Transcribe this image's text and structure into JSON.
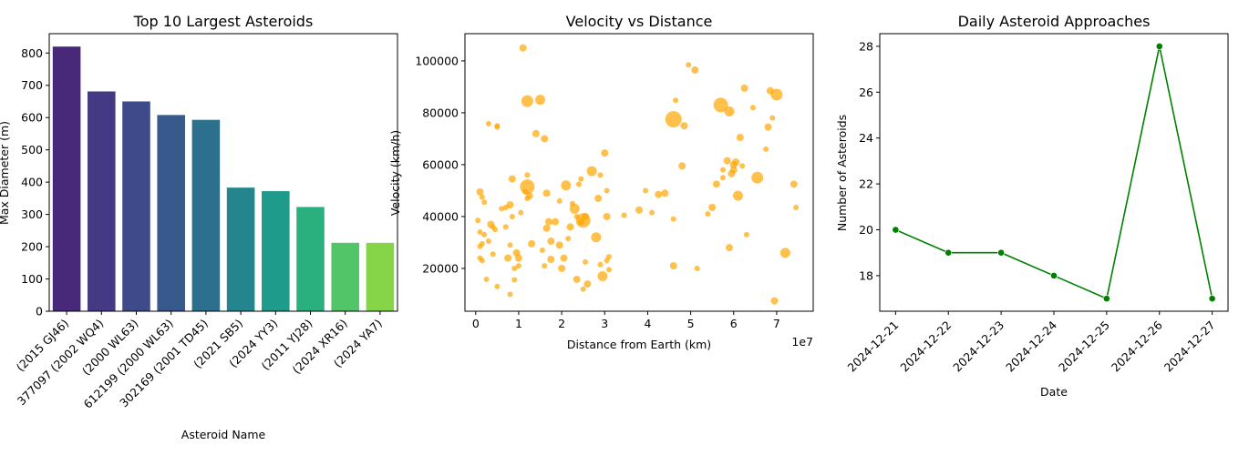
{
  "chart_data": [
    {
      "type": "bar",
      "title": "Top 10 Largest Asteroids",
      "xlabel": "Asteroid Name",
      "ylabel": "Max Diameter (m)",
      "ylim": [
        0,
        860
      ],
      "yticks": [
        0,
        100,
        200,
        300,
        400,
        500,
        600,
        700,
        800
      ],
      "categories": [
        "(2015 GJ46)",
        "377097 (2002 WQ4)",
        "(2000 WL63)",
        "612199 (2000 WL63)",
        "302169 (2001 TD45)",
        "(2021 SB5)",
        "(2024 YY3)",
        "(2011 YJ28)",
        "(2024 XR16)",
        "(2024 YA7)"
      ],
      "values": [
        820,
        681,
        650,
        608,
        593,
        383,
        372,
        323,
        212,
        212
      ],
      "colors": [
        "#482878",
        "#443983",
        "#3e4a89",
        "#38598c",
        "#2d708e",
        "#25858e",
        "#1e9b8a",
        "#2ab07f",
        "#52c569",
        "#86d549"
      ]
    },
    {
      "type": "scatter",
      "title": "Velocity vs Distance",
      "xlabel": "Distance from Earth (km)",
      "ylabel": "Velocity (km/h)",
      "x_multiplier_label": "1e7",
      "xlim": [
        -0.25,
        7.85
      ],
      "ylim": [
        3500,
        110500
      ],
      "xticks": [
        0,
        1,
        2,
        3,
        4,
        5,
        6,
        7
      ],
      "yticks": [
        20000,
        40000,
        60000,
        80000,
        100000
      ],
      "color": "#ffa500",
      "points": [
        [
          0.05,
          38500,
          1
        ],
        [
          0.1,
          49500,
          2
        ],
        [
          0.15,
          47500,
          1
        ],
        [
          0.2,
          45500,
          1
        ],
        [
          0.1,
          34000,
          1
        ],
        [
          0.15,
          29500,
          1
        ],
        [
          0.2,
          33000,
          1
        ],
        [
          0.1,
          28500,
          1
        ],
        [
          0.1,
          24000,
          1
        ],
        [
          0.15,
          23000,
          1
        ],
        [
          0.25,
          15800,
          1
        ],
        [
          0.3,
          30500,
          1
        ],
        [
          0.35,
          37000,
          2
        ],
        [
          0.4,
          36000,
          1
        ],
        [
          0.4,
          25500,
          1
        ],
        [
          0.3,
          75800,
          1
        ],
        [
          0.5,
          75000,
          1
        ],
        [
          0.5,
          74500,
          1
        ],
        [
          0.45,
          35000,
          1
        ],
        [
          0.6,
          43000,
          1
        ],
        [
          0.7,
          43500,
          1
        ],
        [
          0.7,
          36000,
          1
        ],
        [
          0.75,
          24000,
          2
        ],
        [
          0.8,
          29000,
          1
        ],
        [
          0.85,
          40000,
          1
        ],
        [
          0.85,
          54500,
          2
        ],
        [
          0.8,
          44500,
          2
        ],
        [
          0.9,
          20000,
          1
        ],
        [
          0.9,
          15600,
          1
        ],
        [
          0.8,
          10000,
          1
        ],
        [
          0.95,
          26000,
          2
        ],
        [
          1.0,
          21000,
          1
        ],
        [
          1.0,
          24000,
          2
        ],
        [
          0.5,
          13000,
          1
        ],
        [
          1.05,
          41500,
          1
        ],
        [
          1.15,
          49500,
          1
        ],
        [
          1.2,
          47000,
          1
        ],
        [
          1.25,
          48000,
          2
        ],
        [
          1.2,
          56000,
          1
        ],
        [
          1.2,
          51500,
          5
        ],
        [
          1.3,
          29500,
          2
        ],
        [
          1.1,
          105000,
          2
        ],
        [
          1.2,
          84500,
          4
        ],
        [
          1.4,
          72000,
          2
        ],
        [
          1.5,
          85000,
          3
        ],
        [
          1.55,
          27000,
          1
        ],
        [
          1.6,
          70000,
          2
        ],
        [
          1.6,
          21000,
          1
        ],
        [
          1.65,
          35500,
          2
        ],
        [
          1.7,
          38000,
          2
        ],
        [
          1.65,
          49000,
          2
        ],
        [
          1.75,
          30500,
          2
        ],
        [
          1.75,
          23500,
          2
        ],
        [
          1.85,
          38000,
          2
        ],
        [
          1.95,
          46000,
          1
        ],
        [
          1.95,
          29000,
          2
        ],
        [
          2.0,
          20000,
          2
        ],
        [
          2.05,
          24000,
          2
        ],
        [
          2.1,
          52000,
          3
        ],
        [
          2.15,
          31500,
          1
        ],
        [
          2.2,
          36000,
          2
        ],
        [
          2.25,
          45000,
          1
        ],
        [
          2.3,
          43000,
          3
        ],
        [
          2.35,
          40000,
          1
        ],
        [
          2.4,
          52500,
          1
        ],
        [
          2.45,
          54500,
          1
        ],
        [
          2.45,
          38000,
          2
        ],
        [
          2.5,
          38500,
          5
        ],
        [
          2.55,
          22500,
          1
        ],
        [
          2.5,
          12000,
          1
        ],
        [
          2.6,
          14000,
          2
        ],
        [
          2.35,
          15800,
          2
        ],
        [
          2.55,
          40000,
          2
        ],
        [
          2.7,
          57500,
          3
        ],
        [
          2.8,
          32000,
          3
        ],
        [
          2.85,
          47000,
          2
        ],
        [
          2.9,
          56000,
          1
        ],
        [
          2.9,
          21500,
          1
        ],
        [
          2.95,
          17000,
          3
        ],
        [
          3.0,
          64500,
          2
        ],
        [
          3.05,
          50000,
          1
        ],
        [
          3.05,
          23000,
          1
        ],
        [
          3.1,
          24500,
          1
        ],
        [
          3.1,
          19500,
          1
        ],
        [
          3.05,
          40000,
          2
        ],
        [
          3.45,
          40500,
          1
        ],
        [
          3.8,
          42500,
          2
        ],
        [
          3.95,
          50000,
          1
        ],
        [
          4.1,
          41500,
          1
        ],
        [
          4.25,
          48500,
          2
        ],
        [
          4.4,
          49000,
          2
        ],
        [
          4.6,
          39000,
          1
        ],
        [
          4.65,
          84800,
          1
        ],
        [
          4.6,
          21000,
          2
        ],
        [
          4.6,
          77500,
          6
        ],
        [
          4.8,
          59500,
          2
        ],
        [
          4.85,
          75000,
          2
        ],
        [
          4.95,
          98500,
          1
        ],
        [
          5.1,
          96500,
          2
        ],
        [
          5.15,
          20000,
          1
        ],
        [
          5.4,
          41000,
          1
        ],
        [
          5.5,
          43500,
          2
        ],
        [
          5.6,
          52500,
          2
        ],
        [
          5.7,
          83000,
          5
        ],
        [
          5.75,
          58000,
          1
        ],
        [
          5.75,
          55000,
          1
        ],
        [
          5.85,
          61500,
          2
        ],
        [
          5.9,
          80500,
          3
        ],
        [
          5.9,
          28000,
          2
        ],
        [
          5.95,
          56500,
          2
        ],
        [
          6.0,
          60000,
          2
        ],
        [
          6.0,
          58000,
          2
        ],
        [
          6.05,
          61000,
          2
        ],
        [
          6.1,
          48000,
          3
        ],
        [
          6.15,
          70500,
          2
        ],
        [
          6.2,
          59500,
          1
        ],
        [
          6.25,
          89500,
          2
        ],
        [
          6.3,
          33000,
          1
        ],
        [
          6.45,
          82000,
          1
        ],
        [
          6.55,
          55000,
          4
        ],
        [
          6.75,
          66000,
          1
        ],
        [
          6.8,
          74500,
          2
        ],
        [
          6.85,
          88500,
          2
        ],
        [
          6.9,
          78000,
          1
        ],
        [
          6.95,
          7500,
          2
        ],
        [
          7.0,
          87000,
          4
        ],
        [
          7.2,
          26000,
          3
        ],
        [
          7.4,
          52500,
          2
        ],
        [
          7.45,
          43500,
          1
        ]
      ]
    },
    {
      "type": "line",
      "title": "Daily Asteroid Approaches",
      "xlabel": "Date",
      "ylabel": "Number of Asteroids",
      "categories": [
        "2024-12-21",
        "2024-12-22",
        "2024-12-23",
        "2024-12-24",
        "2024-12-25",
        "2024-12-26",
        "2024-12-27"
      ],
      "values": [
        20,
        19,
        19,
        18,
        17,
        28,
        17
      ],
      "ylim": [
        16.45,
        28.55
      ],
      "yticks": [
        18,
        20,
        22,
        24,
        26,
        28
      ],
      "color": "#008000"
    }
  ]
}
